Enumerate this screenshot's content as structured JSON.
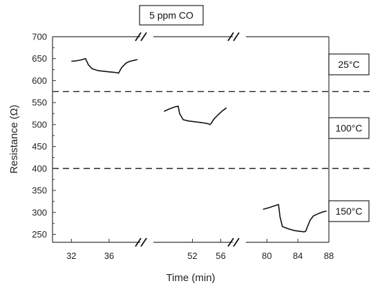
{
  "chart_data": {
    "type": "line",
    "title": "5 ppm CO",
    "xlabel": "Time (min)",
    "ylabel": "Resistance (Ω)",
    "ylim": [
      232,
      700
    ],
    "y_ticks": [
      250,
      300,
      350,
      400,
      450,
      500,
      550,
      600,
      650,
      700
    ],
    "dashed_separators": [
      575,
      400
    ],
    "x_segments": [
      {
        "xlim": [
          30,
          39.3
        ],
        "ticks": [
          32,
          36
        ]
      },
      {
        "xlim": [
          46.5,
          57.7
        ],
        "ticks": [
          52,
          56
        ]
      },
      {
        "xlim": [
          77.3,
          88
        ],
        "ticks": [
          80,
          84,
          88
        ]
      }
    ],
    "regions": [
      "25°C",
      "100°C",
      "150°C"
    ],
    "series": [
      {
        "x": [
          32.0,
          32.5,
          33.0,
          33.5,
          33.8,
          34.2,
          34.8,
          35.5,
          36.0,
          36.5,
          36.8,
          37.0,
          37.3,
          37.8,
          38.2,
          38.6,
          39.0
        ],
        "y": [
          644,
          645,
          647,
          650,
          636,
          627,
          623,
          621,
          620,
          619,
          618,
          617,
          629,
          640,
          644,
          646,
          648
        ]
      },
      {
        "x": [
          48.0,
          48.8,
          49.5,
          50.0,
          50.2,
          50.7,
          51.5,
          52.5,
          53.5,
          54.2,
          54.5,
          54.7,
          55.0,
          55.6,
          56.2,
          56.8
        ],
        "y": [
          530,
          536,
          540,
          542,
          525,
          511,
          508,
          506,
          504,
          502,
          500,
          504,
          512,
          522,
          531,
          538
        ]
      },
      {
        "x": [
          79.5,
          80.3,
          81.0,
          81.5,
          81.7,
          82.0,
          82.7,
          83.5,
          84.2,
          84.8,
          85.0,
          85.2,
          85.6,
          86.0,
          86.6,
          87.2,
          87.7
        ],
        "y": [
          307,
          311,
          315,
          318,
          290,
          268,
          263,
          259,
          257,
          256,
          257,
          266,
          283,
          292,
          297,
          301,
          303
        ]
      }
    ]
  }
}
